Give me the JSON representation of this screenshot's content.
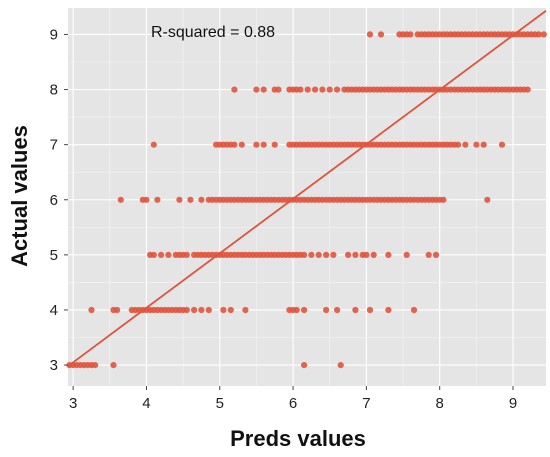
{
  "chart_data": {
    "type": "scatter",
    "title": "",
    "xlabel": "Preds values",
    "ylabel": "Actual values",
    "annotation": "R-squared = 0.88",
    "xlim": [
      2.93,
      9.45
    ],
    "ylim": [
      2.62,
      9.48
    ],
    "x_ticks": [
      3,
      4,
      5,
      6,
      7,
      8,
      9
    ],
    "y_ticks": [
      3,
      4,
      5,
      6,
      7,
      8,
      9
    ],
    "grid": true,
    "colors": {
      "panel": "#e5e5e5",
      "grid": "#ffffff",
      "points": "#e0533c",
      "fit_line": "#e0533c"
    },
    "fit_line": {
      "x": [
        2.93,
        9.45
      ],
      "y": [
        2.98,
        9.43
      ]
    },
    "series": [
      {
        "points": [
          [
            2.95,
            3
          ],
          [
            3.0,
            3
          ],
          [
            3.05,
            3
          ],
          [
            3.1,
            3
          ],
          [
            3.15,
            3
          ],
          [
            3.2,
            3
          ],
          [
            3.25,
            3
          ],
          [
            3.3,
            3
          ],
          [
            3.55,
            3
          ],
          [
            6.15,
            3
          ],
          [
            6.65,
            3
          ],
          [
            3.25,
            4
          ],
          [
            3.55,
            4
          ],
          [
            3.6,
            4
          ],
          [
            3.8,
            4
          ],
          [
            3.85,
            4
          ],
          [
            3.9,
            4
          ],
          [
            3.95,
            4
          ],
          [
            4.0,
            4
          ],
          [
            4.05,
            4
          ],
          [
            4.1,
            4
          ],
          [
            4.15,
            4
          ],
          [
            4.2,
            4
          ],
          [
            4.25,
            4
          ],
          [
            4.3,
            4
          ],
          [
            4.35,
            4
          ],
          [
            4.4,
            4
          ],
          [
            4.45,
            4
          ],
          [
            4.5,
            4
          ],
          [
            4.55,
            4
          ],
          [
            4.65,
            4
          ],
          [
            4.75,
            4
          ],
          [
            4.85,
            4
          ],
          [
            5.05,
            4
          ],
          [
            5.15,
            4
          ],
          [
            5.35,
            4
          ],
          [
            5.95,
            4
          ],
          [
            6.0,
            4
          ],
          [
            6.05,
            4
          ],
          [
            6.15,
            4
          ],
          [
            6.45,
            4
          ],
          [
            6.6,
            4
          ],
          [
            6.85,
            4
          ],
          [
            7.05,
            4
          ],
          [
            7.3,
            4
          ],
          [
            7.65,
            4
          ],
          [
            4.05,
            5
          ],
          [
            4.1,
            5
          ],
          [
            4.2,
            5
          ],
          [
            4.3,
            5
          ],
          [
            4.4,
            5
          ],
          [
            4.45,
            5
          ],
          [
            4.5,
            5
          ],
          [
            4.55,
            5
          ],
          [
            4.65,
            5
          ],
          [
            4.7,
            5
          ],
          [
            4.75,
            5
          ],
          [
            4.8,
            5
          ],
          [
            4.85,
            5
          ],
          [
            4.9,
            5
          ],
          [
            4.95,
            5
          ],
          [
            5.0,
            5
          ],
          [
            5.05,
            5
          ],
          [
            5.1,
            5
          ],
          [
            5.15,
            5
          ],
          [
            5.2,
            5
          ],
          [
            5.25,
            5
          ],
          [
            5.3,
            5
          ],
          [
            5.35,
            5
          ],
          [
            5.4,
            5
          ],
          [
            5.45,
            5
          ],
          [
            5.5,
            5
          ],
          [
            5.55,
            5
          ],
          [
            5.6,
            5
          ],
          [
            5.65,
            5
          ],
          [
            5.7,
            5
          ],
          [
            5.75,
            5
          ],
          [
            5.8,
            5
          ],
          [
            5.85,
            5
          ],
          [
            5.9,
            5
          ],
          [
            5.95,
            5
          ],
          [
            6.0,
            5
          ],
          [
            6.05,
            5
          ],
          [
            6.1,
            5
          ],
          [
            6.15,
            5
          ],
          [
            6.25,
            5
          ],
          [
            6.35,
            5
          ],
          [
            6.45,
            5
          ],
          [
            6.55,
            5
          ],
          [
            6.75,
            5
          ],
          [
            6.85,
            5
          ],
          [
            6.95,
            5
          ],
          [
            7.0,
            5
          ],
          [
            7.1,
            5
          ],
          [
            7.3,
            5
          ],
          [
            7.55,
            5
          ],
          [
            7.85,
            5
          ],
          [
            7.95,
            5
          ],
          [
            3.65,
            6
          ],
          [
            3.95,
            6
          ],
          [
            4.0,
            6
          ],
          [
            4.15,
            6
          ],
          [
            4.45,
            6
          ],
          [
            4.6,
            6
          ],
          [
            4.75,
            6
          ],
          [
            4.85,
            6
          ],
          [
            4.9,
            6
          ],
          [
            4.95,
            6
          ],
          [
            5.0,
            6
          ],
          [
            5.05,
            6
          ],
          [
            5.1,
            6
          ],
          [
            5.15,
            6
          ],
          [
            5.2,
            6
          ],
          [
            5.25,
            6
          ],
          [
            5.3,
            6
          ],
          [
            5.35,
            6
          ],
          [
            5.4,
            6
          ],
          [
            5.45,
            6
          ],
          [
            5.5,
            6
          ],
          [
            5.55,
            6
          ],
          [
            5.6,
            6
          ],
          [
            5.65,
            6
          ],
          [
            5.7,
            6
          ],
          [
            5.75,
            6
          ],
          [
            5.8,
            6
          ],
          [
            5.85,
            6
          ],
          [
            5.9,
            6
          ],
          [
            5.95,
            6
          ],
          [
            6.0,
            6
          ],
          [
            6.05,
            6
          ],
          [
            6.1,
            6
          ],
          [
            6.15,
            6
          ],
          [
            6.2,
            6
          ],
          [
            6.25,
            6
          ],
          [
            6.3,
            6
          ],
          [
            6.35,
            6
          ],
          [
            6.4,
            6
          ],
          [
            6.45,
            6
          ],
          [
            6.5,
            6
          ],
          [
            6.55,
            6
          ],
          [
            6.6,
            6
          ],
          [
            6.65,
            6
          ],
          [
            6.7,
            6
          ],
          [
            6.75,
            6
          ],
          [
            6.8,
            6
          ],
          [
            6.85,
            6
          ],
          [
            6.9,
            6
          ],
          [
            6.95,
            6
          ],
          [
            7.0,
            6
          ],
          [
            7.05,
            6
          ],
          [
            7.1,
            6
          ],
          [
            7.15,
            6
          ],
          [
            7.2,
            6
          ],
          [
            7.25,
            6
          ],
          [
            7.3,
            6
          ],
          [
            7.35,
            6
          ],
          [
            7.4,
            6
          ],
          [
            7.45,
            6
          ],
          [
            7.5,
            6
          ],
          [
            7.55,
            6
          ],
          [
            7.6,
            6
          ],
          [
            7.65,
            6
          ],
          [
            7.7,
            6
          ],
          [
            7.75,
            6
          ],
          [
            7.8,
            6
          ],
          [
            7.85,
            6
          ],
          [
            7.9,
            6
          ],
          [
            7.95,
            6
          ],
          [
            8.0,
            6
          ],
          [
            8.05,
            6
          ],
          [
            8.65,
            6
          ],
          [
            4.1,
            7
          ],
          [
            4.95,
            7
          ],
          [
            5.0,
            7
          ],
          [
            5.05,
            7
          ],
          [
            5.1,
            7
          ],
          [
            5.15,
            7
          ],
          [
            5.2,
            7
          ],
          [
            5.3,
            7
          ],
          [
            5.5,
            7
          ],
          [
            5.6,
            7
          ],
          [
            5.75,
            7
          ],
          [
            5.95,
            7
          ],
          [
            6.0,
            7
          ],
          [
            6.05,
            7
          ],
          [
            6.1,
            7
          ],
          [
            6.15,
            7
          ],
          [
            6.2,
            7
          ],
          [
            6.25,
            7
          ],
          [
            6.3,
            7
          ],
          [
            6.35,
            7
          ],
          [
            6.4,
            7
          ],
          [
            6.45,
            7
          ],
          [
            6.5,
            7
          ],
          [
            6.55,
            7
          ],
          [
            6.6,
            7
          ],
          [
            6.65,
            7
          ],
          [
            6.7,
            7
          ],
          [
            6.75,
            7
          ],
          [
            6.8,
            7
          ],
          [
            6.85,
            7
          ],
          [
            6.9,
            7
          ],
          [
            6.95,
            7
          ],
          [
            7.0,
            7
          ],
          [
            7.05,
            7
          ],
          [
            7.1,
            7
          ],
          [
            7.15,
            7
          ],
          [
            7.2,
            7
          ],
          [
            7.25,
            7
          ],
          [
            7.3,
            7
          ],
          [
            7.35,
            7
          ],
          [
            7.4,
            7
          ],
          [
            7.45,
            7
          ],
          [
            7.5,
            7
          ],
          [
            7.55,
            7
          ],
          [
            7.6,
            7
          ],
          [
            7.65,
            7
          ],
          [
            7.7,
            7
          ],
          [
            7.75,
            7
          ],
          [
            7.8,
            7
          ],
          [
            7.85,
            7
          ],
          [
            7.9,
            7
          ],
          [
            7.95,
            7
          ],
          [
            8.0,
            7
          ],
          [
            8.05,
            7
          ],
          [
            8.1,
            7
          ],
          [
            8.15,
            7
          ],
          [
            8.2,
            7
          ],
          [
            8.25,
            7
          ],
          [
            8.35,
            7
          ],
          [
            8.5,
            7
          ],
          [
            8.6,
            7
          ],
          [
            8.85,
            7
          ],
          [
            5.2,
            8
          ],
          [
            5.5,
            8
          ],
          [
            5.6,
            8
          ],
          [
            5.75,
            8
          ],
          [
            5.8,
            8
          ],
          [
            5.95,
            8
          ],
          [
            6.0,
            8
          ],
          [
            6.05,
            8
          ],
          [
            6.1,
            8
          ],
          [
            6.2,
            8
          ],
          [
            6.3,
            8
          ],
          [
            6.4,
            8
          ],
          [
            6.5,
            8
          ],
          [
            6.6,
            8
          ],
          [
            6.7,
            8
          ],
          [
            6.75,
            8
          ],
          [
            6.8,
            8
          ],
          [
            6.85,
            8
          ],
          [
            6.9,
            8
          ],
          [
            6.95,
            8
          ],
          [
            7.0,
            8
          ],
          [
            7.05,
            8
          ],
          [
            7.1,
            8
          ],
          [
            7.15,
            8
          ],
          [
            7.2,
            8
          ],
          [
            7.25,
            8
          ],
          [
            7.3,
            8
          ],
          [
            7.35,
            8
          ],
          [
            7.4,
            8
          ],
          [
            7.45,
            8
          ],
          [
            7.5,
            8
          ],
          [
            7.55,
            8
          ],
          [
            7.6,
            8
          ],
          [
            7.65,
            8
          ],
          [
            7.7,
            8
          ],
          [
            7.75,
            8
          ],
          [
            7.8,
            8
          ],
          [
            7.85,
            8
          ],
          [
            7.9,
            8
          ],
          [
            7.95,
            8
          ],
          [
            8.0,
            8
          ],
          [
            8.05,
            8
          ],
          [
            8.1,
            8
          ],
          [
            8.15,
            8
          ],
          [
            8.2,
            8
          ],
          [
            8.25,
            8
          ],
          [
            8.3,
            8
          ],
          [
            8.35,
            8
          ],
          [
            8.4,
            8
          ],
          [
            8.45,
            8
          ],
          [
            8.5,
            8
          ],
          [
            8.55,
            8
          ],
          [
            8.6,
            8
          ],
          [
            8.65,
            8
          ],
          [
            8.7,
            8
          ],
          [
            8.75,
            8
          ],
          [
            8.8,
            8
          ],
          [
            8.85,
            8
          ],
          [
            8.9,
            8
          ],
          [
            8.95,
            8
          ],
          [
            9.0,
            8
          ],
          [
            9.05,
            8
          ],
          [
            9.1,
            8
          ],
          [
            9.15,
            8
          ],
          [
            9.2,
            8
          ],
          [
            7.05,
            9
          ],
          [
            7.2,
            9
          ],
          [
            7.45,
            9
          ],
          [
            7.5,
            9
          ],
          [
            7.55,
            9
          ],
          [
            7.6,
            9
          ],
          [
            7.7,
            9
          ],
          [
            7.75,
            9
          ],
          [
            7.8,
            9
          ],
          [
            7.85,
            9
          ],
          [
            7.9,
            9
          ],
          [
            7.95,
            9
          ],
          [
            8.0,
            9
          ],
          [
            8.05,
            9
          ],
          [
            8.1,
            9
          ],
          [
            8.15,
            9
          ],
          [
            8.2,
            9
          ],
          [
            8.25,
            9
          ],
          [
            8.3,
            9
          ],
          [
            8.35,
            9
          ],
          [
            8.4,
            9
          ],
          [
            8.45,
            9
          ],
          [
            8.5,
            9
          ],
          [
            8.55,
            9
          ],
          [
            8.6,
            9
          ],
          [
            8.65,
            9
          ],
          [
            8.7,
            9
          ],
          [
            8.75,
            9
          ],
          [
            8.8,
            9
          ],
          [
            8.85,
            9
          ],
          [
            8.9,
            9
          ],
          [
            8.95,
            9
          ],
          [
            9.0,
            9
          ],
          [
            9.05,
            9
          ],
          [
            9.1,
            9
          ],
          [
            9.15,
            9
          ],
          [
            9.2,
            9
          ],
          [
            9.25,
            9
          ],
          [
            9.3,
            9
          ],
          [
            9.35,
            9
          ],
          [
            9.42,
            9
          ]
        ]
      }
    ]
  }
}
